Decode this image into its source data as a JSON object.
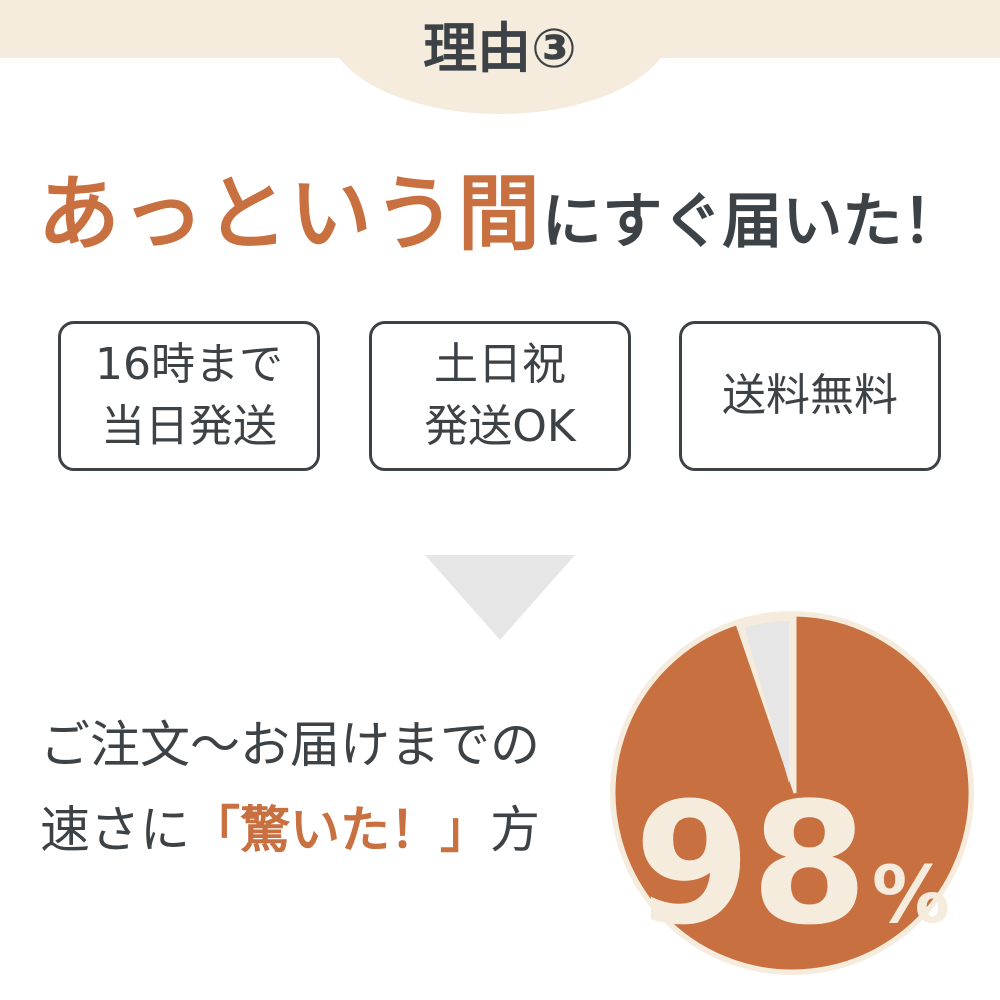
{
  "header": {
    "title": "理由③"
  },
  "headline": {
    "highlight": "あっという間",
    "rest": "にすぐ届いた！"
  },
  "features": [
    {
      "line1": "16時まで",
      "line2": "当日発送"
    },
    {
      "line1": "土日祝",
      "line2": "発送OK"
    },
    {
      "line1": "送料無料",
      "line2": ""
    }
  ],
  "result": {
    "line1": "ご注文～お届けまでの",
    "line2_prefix": "速さに",
    "line2_accent": "「驚いた！」",
    "line2_suffix": "方"
  },
  "pie": {
    "percent": 98,
    "value_label": "98",
    "unit_label": "%",
    "colors": {
      "main": "#c8703f",
      "rest": "#e6e6e6",
      "outline": "#f5ecdd",
      "text": "#f5ecdd"
    }
  },
  "colors": {
    "accent": "#c8703f",
    "text": "#3d4246",
    "band": "#f5ecdd"
  }
}
